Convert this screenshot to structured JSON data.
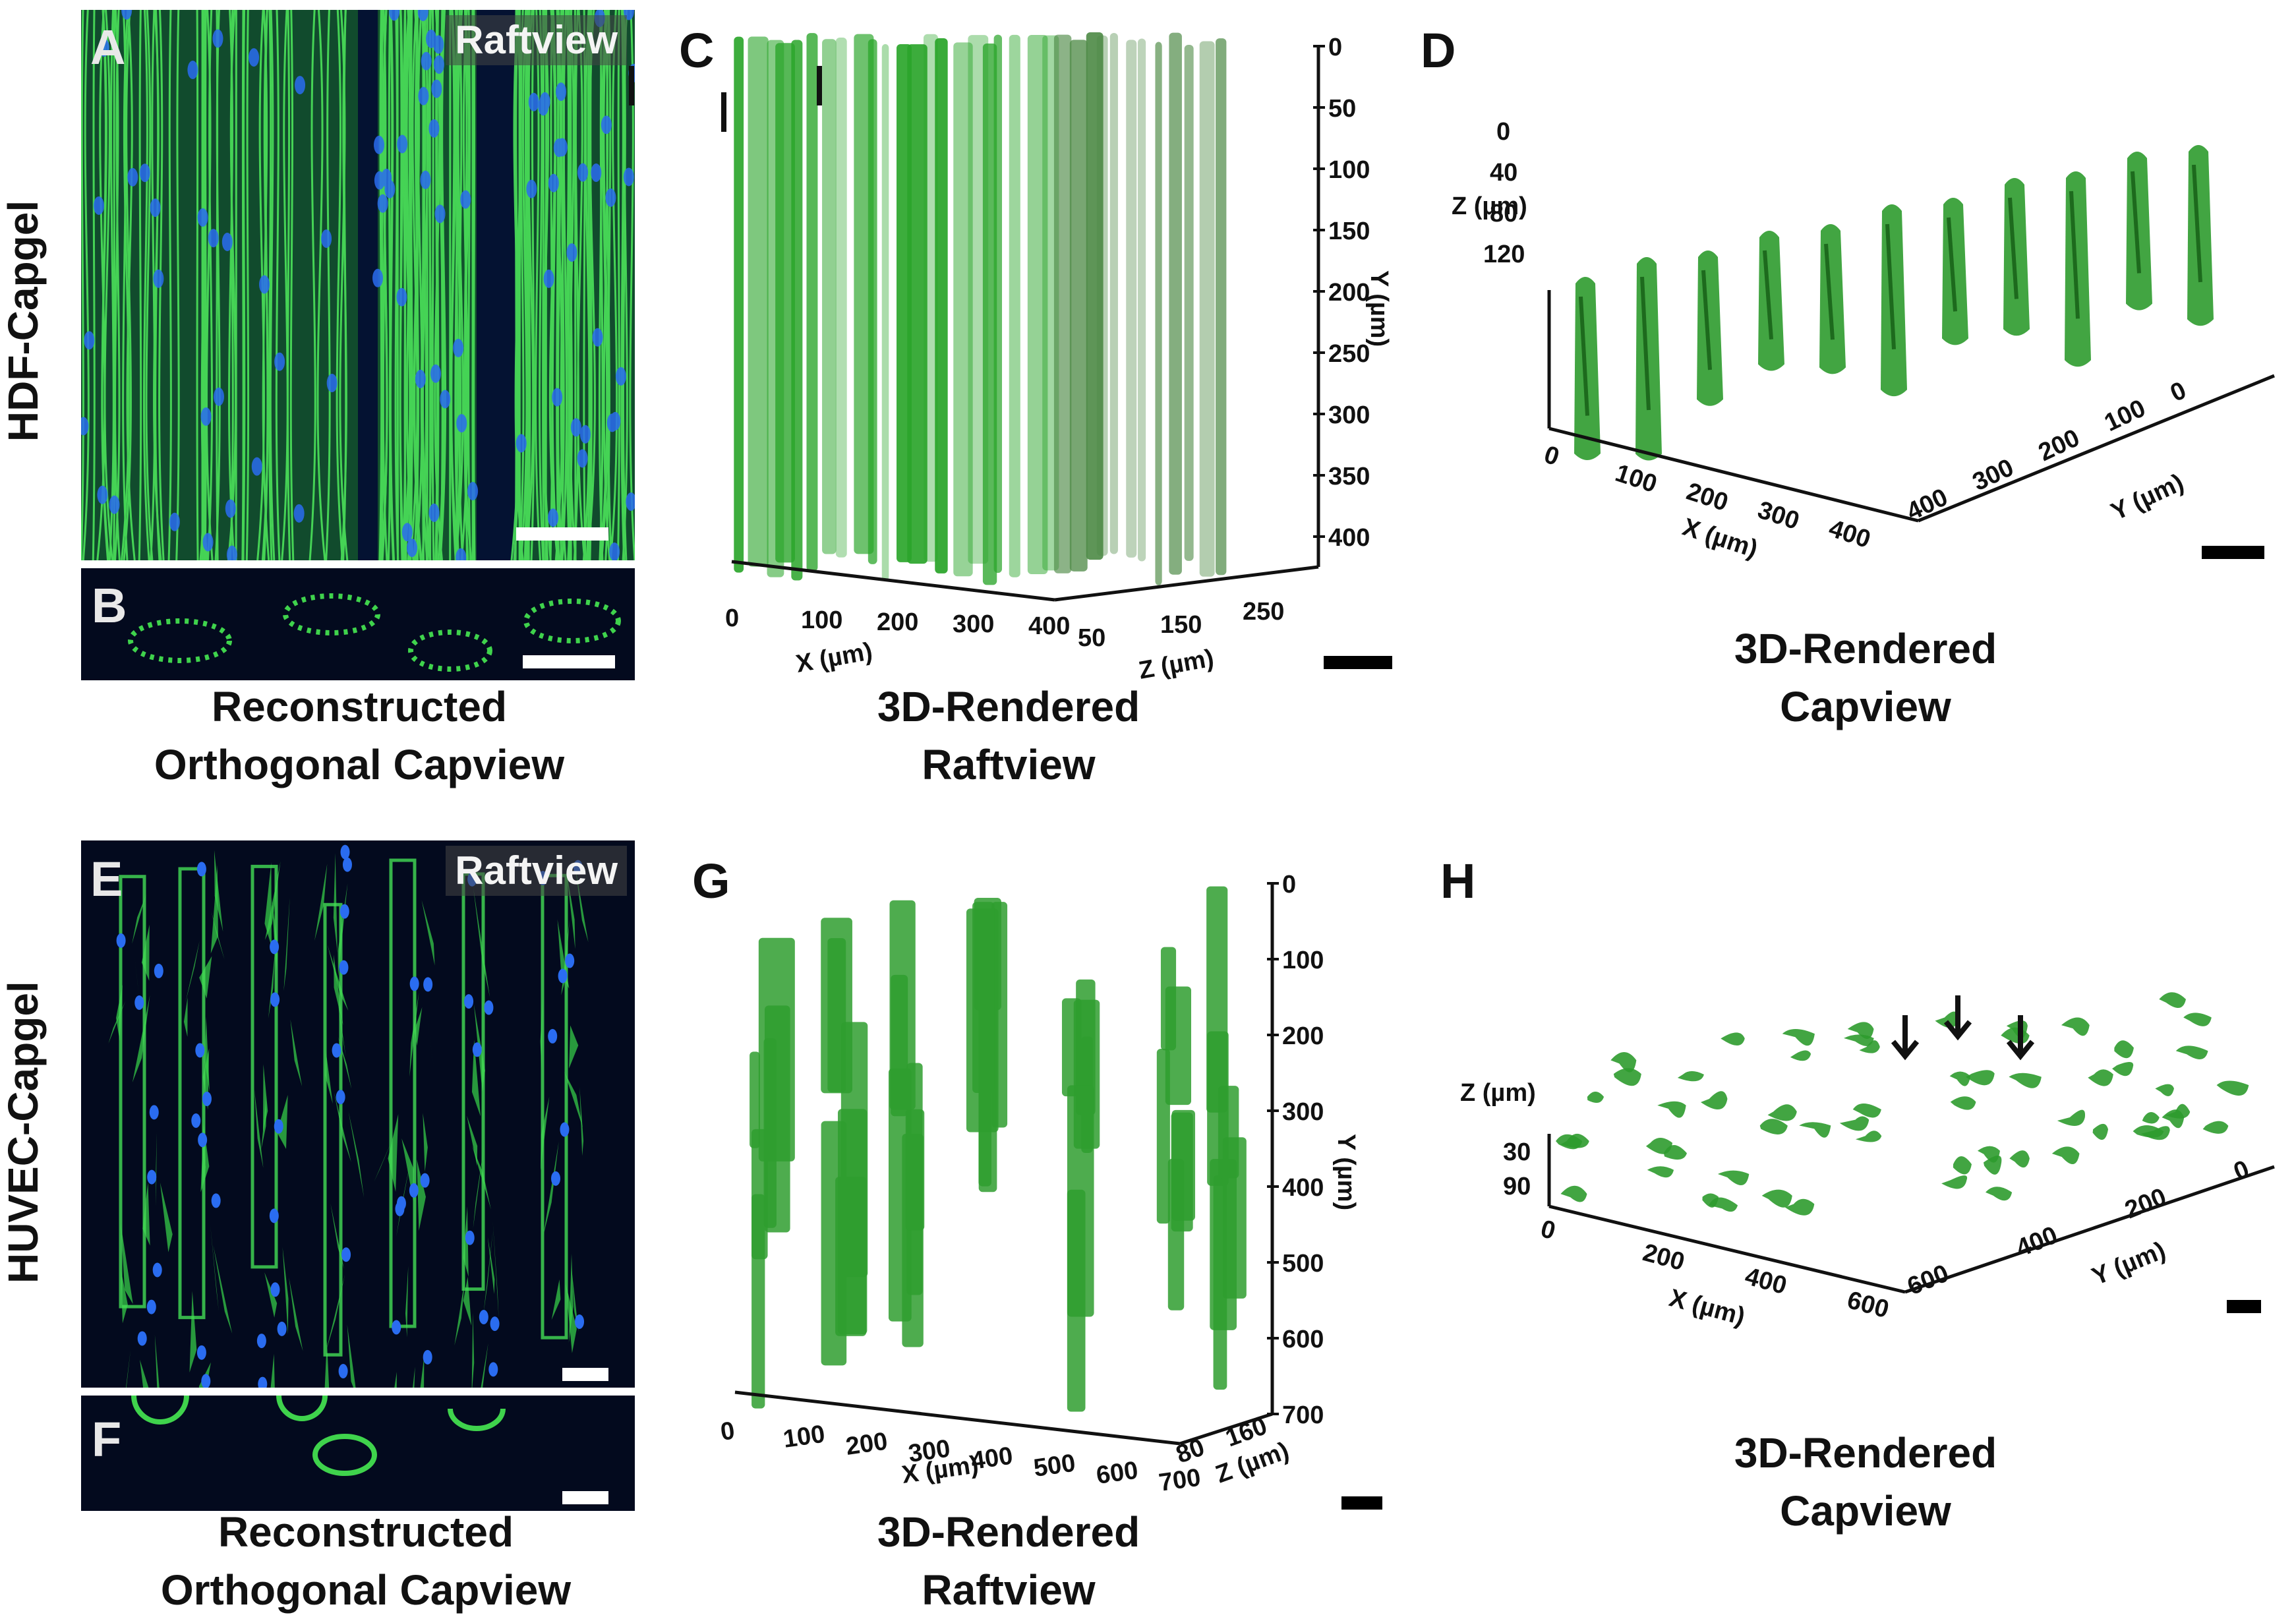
{
  "row_labels": {
    "top": "HDF-Capgel",
    "bottom": "HUVEC-Capgel"
  },
  "panels": {
    "A": {
      "letter": "A",
      "overlay": "Raftview"
    },
    "B": {
      "letter": "B"
    },
    "C": {
      "letter": "C",
      "y_ticks": [
        "0",
        "50",
        "100",
        "150",
        "200",
        "250",
        "300",
        "350",
        "400"
      ],
      "y_label": "Y (µm)",
      "x_ticks": [
        "0",
        "100",
        "200",
        "300",
        "400"
      ],
      "x_label": "X (µm)",
      "z_ticks": [
        "50",
        "150",
        "250"
      ],
      "z_label": "Z (µm)"
    },
    "D": {
      "letter": "D",
      "z_ticks": [
        "0",
        "40",
        "80",
        "120"
      ],
      "z_label": "Z (µm)",
      "x_ticks": [
        "0",
        "100",
        "200",
        "300",
        "400"
      ],
      "x_label": "X (µm)",
      "y_ticks": [
        "400",
        "300",
        "200",
        "100",
        "0"
      ],
      "y_label": "Y (µm)"
    },
    "E": {
      "letter": "E",
      "overlay": "Raftview"
    },
    "F": {
      "letter": "F"
    },
    "G": {
      "letter": "G",
      "y_ticks": [
        "0",
        "100",
        "200",
        "300",
        "400",
        "500",
        "600",
        "700"
      ],
      "y_label": "Y (µm)",
      "x_ticks": [
        "0",
        "100",
        "200",
        "300",
        "400",
        "500",
        "600",
        "700"
      ],
      "x_label": "X (µm)",
      "z_ticks": [
        "80",
        "160"
      ],
      "z_label": "Z (µm)"
    },
    "H": {
      "letter": "H",
      "z_ticks": [
        "30",
        "90"
      ],
      "z_label": "Z (µm)",
      "x_ticks": [
        "0",
        "200",
        "400",
        "600"
      ],
      "x_label": "X (µm)",
      "y_ticks": [
        "600",
        "400",
        "200",
        "0"
      ],
      "y_label": "Y (µm)"
    }
  },
  "captions": {
    "top_orthogonal": [
      "Reconstructed",
      "Orthogonal Capview"
    ],
    "top_raft3d": [
      "3D-Rendered",
      "Raftview"
    ],
    "top_cap3d": [
      "3D-Rendered",
      "Capview"
    ],
    "bottom_orthogonal": [
      "Reconstructed",
      "Orthogonal Capview"
    ],
    "bottom_raft3d": [
      "3D-Rendered",
      "Raftview"
    ],
    "bottom_cap3d": [
      "3D-Rendered",
      "Capview"
    ]
  },
  "colors": {
    "fluorescence_green": "#3cd84a",
    "nuclei_blue": "#2a6cf0",
    "render_green": "#2e9b2e",
    "background_dark": "#030a1e"
  }
}
